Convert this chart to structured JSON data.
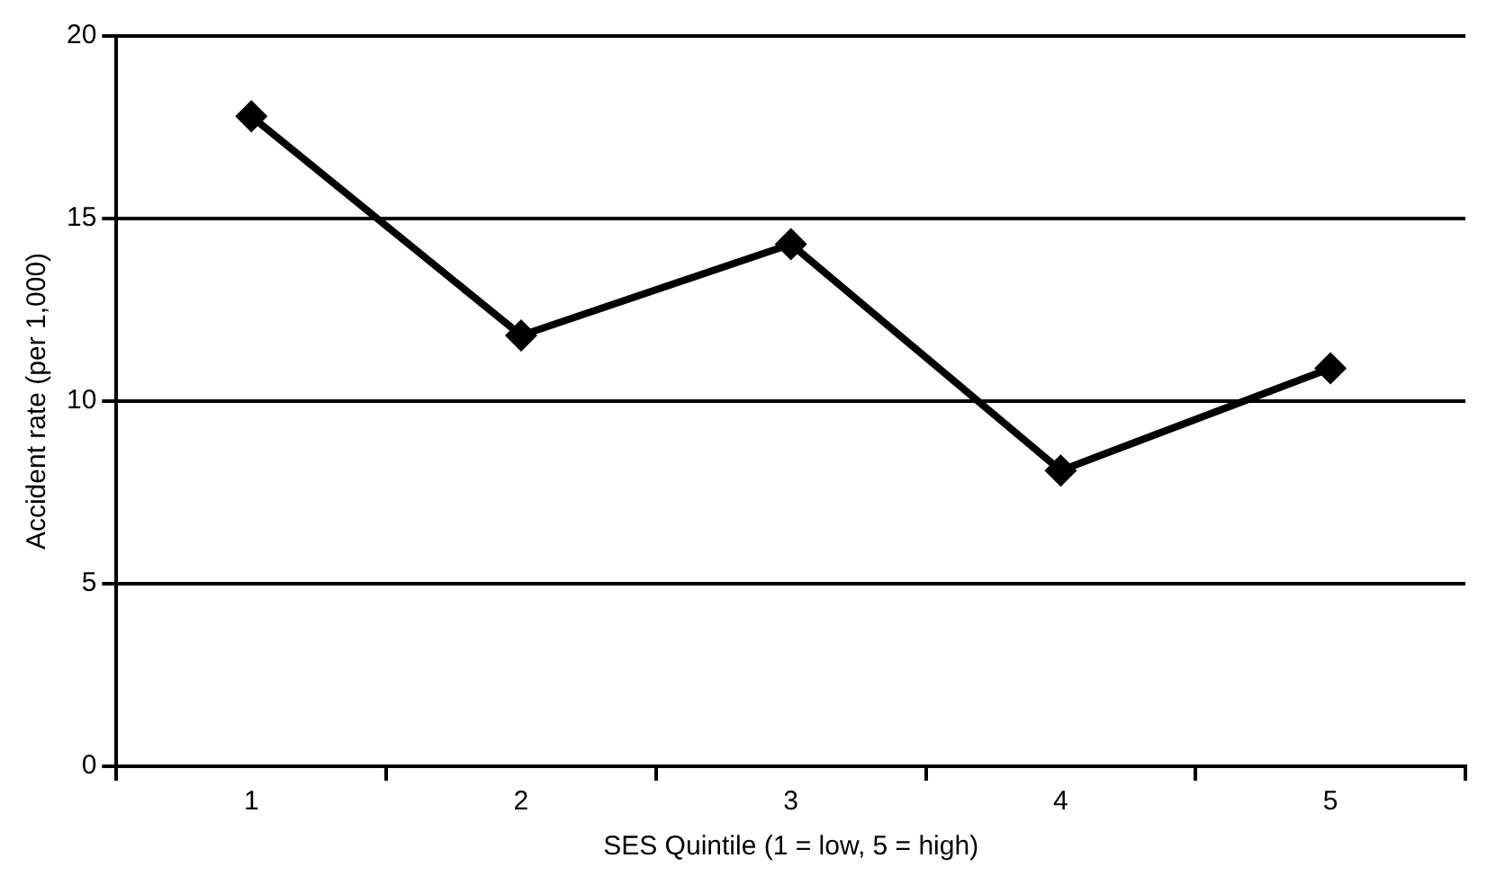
{
  "chart_data": {
    "type": "line",
    "xlabel": "SES Quintile (1 = low, 5 = high)",
    "ylabel": "Accident rate (per 1,000)",
    "categories": [
      "1",
      "2",
      "3",
      "4",
      "5"
    ],
    "series": [
      {
        "color": "#000000",
        "values": [
          17.8,
          11.8,
          14.3,
          8.1,
          10.9
        ]
      }
    ],
    "ylim": [
      0,
      20
    ],
    "yticks": [
      0,
      5,
      10,
      15,
      20
    ],
    "grid": "y",
    "legend": false,
    "marker": "diamond",
    "line_style": "solid"
  }
}
